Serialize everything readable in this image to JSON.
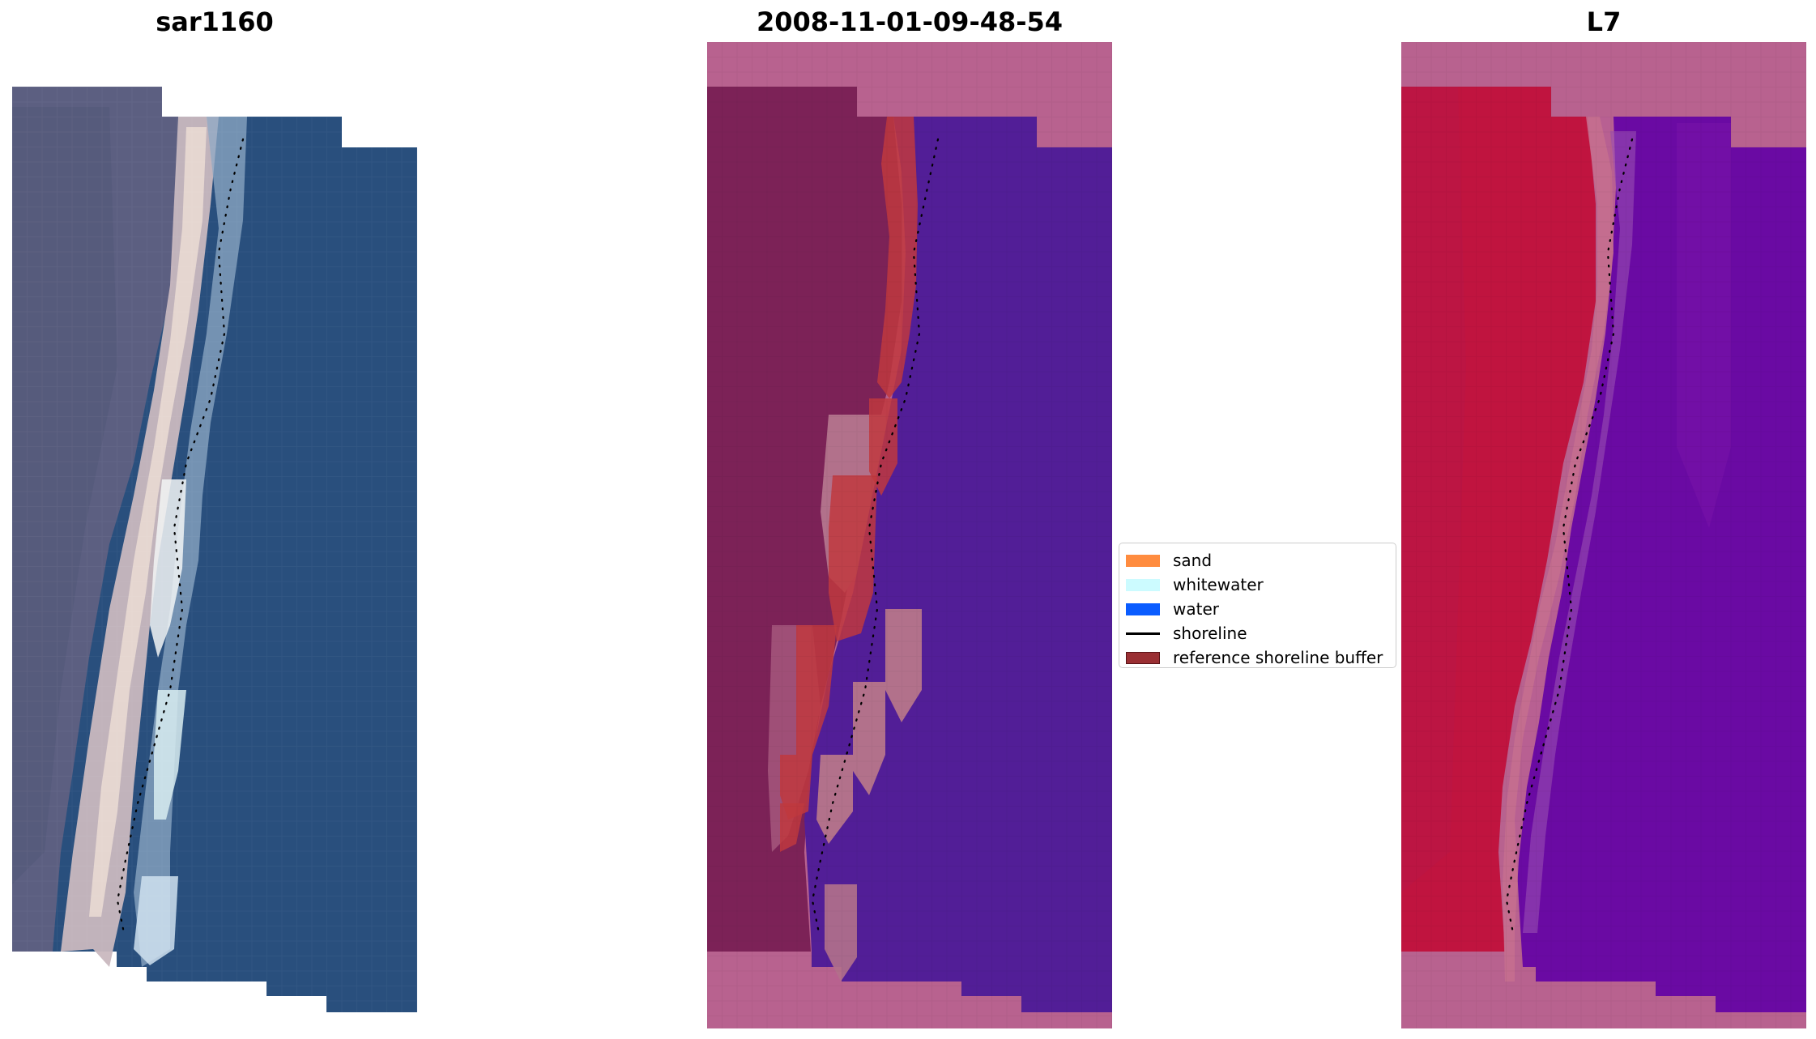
{
  "titles": {
    "left": "sar1160",
    "middle": "2008-11-01-09-48-54",
    "right": "L7"
  },
  "legend": {
    "items": [
      {
        "label": "sand",
        "color": "#ff8c3f",
        "kind": "patch"
      },
      {
        "label": "whitewater",
        "color": "#ccfbff",
        "kind": "patch"
      },
      {
        "label": "water",
        "color": "#0a5cff",
        "kind": "patch"
      },
      {
        "label": "shoreline",
        "color": "#000000",
        "kind": "line"
      },
      {
        "label": "reference shoreline buffer",
        "color": "#9a2f33",
        "kind": "patch"
      }
    ]
  },
  "colors": {
    "no_data_mask": "#b8628f",
    "land_rgb": "#5c5f80",
    "sand_rgb": "#d9c3c3",
    "whitewater_rgb": "#e6f2f5",
    "water_rgb": "#284f7e",
    "classified_land": "#7c2257",
    "classified_water": "#521e97",
    "classified_buffer": "#c0383e",
    "classified_sand_halo": "#b2718b",
    "index_land": "#c0143f",
    "index_water": "#6a0aa3",
    "index_transition": "#c6708f"
  }
}
